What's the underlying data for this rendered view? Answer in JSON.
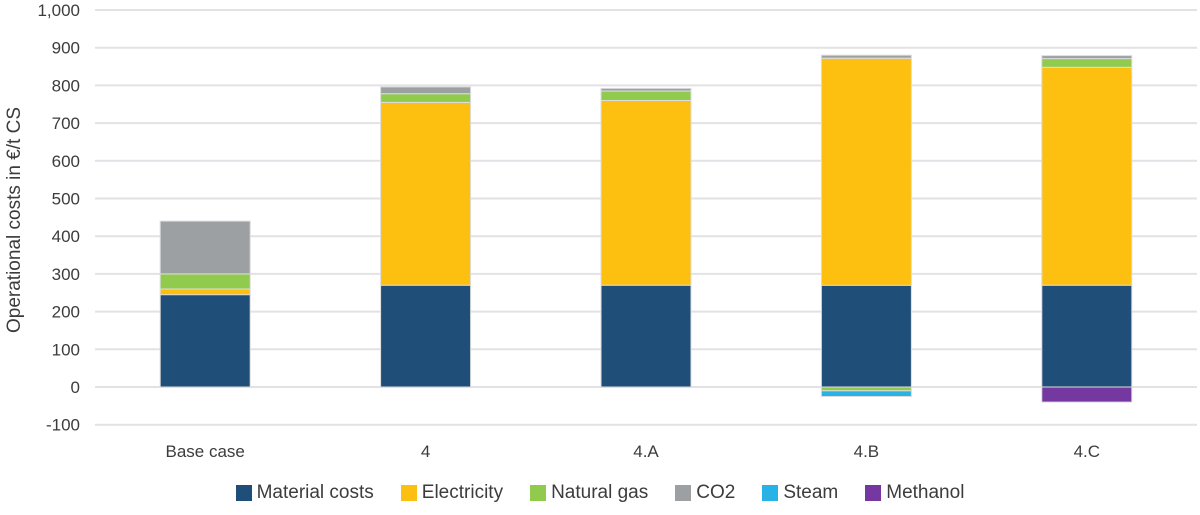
{
  "chart_data": {
    "type": "bar",
    "stacked": true,
    "title": "",
    "xlabel": "",
    "ylabel": "Operational costs in €/t CS",
    "ylim": [
      -100,
      1000
    ],
    "grid": true,
    "legend_position": "bottom",
    "categories": [
      "Base case",
      "4",
      "4.A",
      "4.B",
      "4.C"
    ],
    "series": [
      {
        "name": "Material costs",
        "color": "#1f4e79",
        "values": [
          245,
          270,
          270,
          270,
          270
        ]
      },
      {
        "name": "Electricity",
        "color": "#fdc010",
        "values": [
          15,
          485,
          490,
          602,
          578
        ]
      },
      {
        "name": "Natural gas",
        "color": "#90cb4d",
        "values": [
          40,
          23,
          25,
          -10,
          23
        ]
      },
      {
        "name": "CO2",
        "color": "#9da0a3",
        "values": [
          140,
          18,
          7,
          8,
          8
        ]
      },
      {
        "name": "Steam",
        "color": "#29b2e6",
        "values": [
          0,
          0,
          0,
          -15,
          0
        ]
      },
      {
        "name": "Methanol",
        "color": "#7438a0",
        "values": [
          0,
          0,
          0,
          0,
          -40
        ]
      }
    ],
    "yticks": [
      {
        "value": 1000,
        "label": "1,000"
      },
      {
        "value": 900,
        "label": "900"
      },
      {
        "value": 800,
        "label": "800"
      },
      {
        "value": 700,
        "label": "700"
      },
      {
        "value": 600,
        "label": "600"
      },
      {
        "value": 500,
        "label": "500"
      },
      {
        "value": 400,
        "label": "400"
      },
      {
        "value": 300,
        "label": "300"
      },
      {
        "value": 200,
        "label": "200"
      },
      {
        "value": 100,
        "label": "100"
      },
      {
        "value": 0,
        "label": "0"
      },
      {
        "value": -100,
        "label": "-100"
      }
    ],
    "bar_totals_positive": [
      440,
      796,
      792,
      880,
      879
    ],
    "bar_totals_negative": [
      0,
      0,
      0,
      -25,
      -40
    ]
  }
}
